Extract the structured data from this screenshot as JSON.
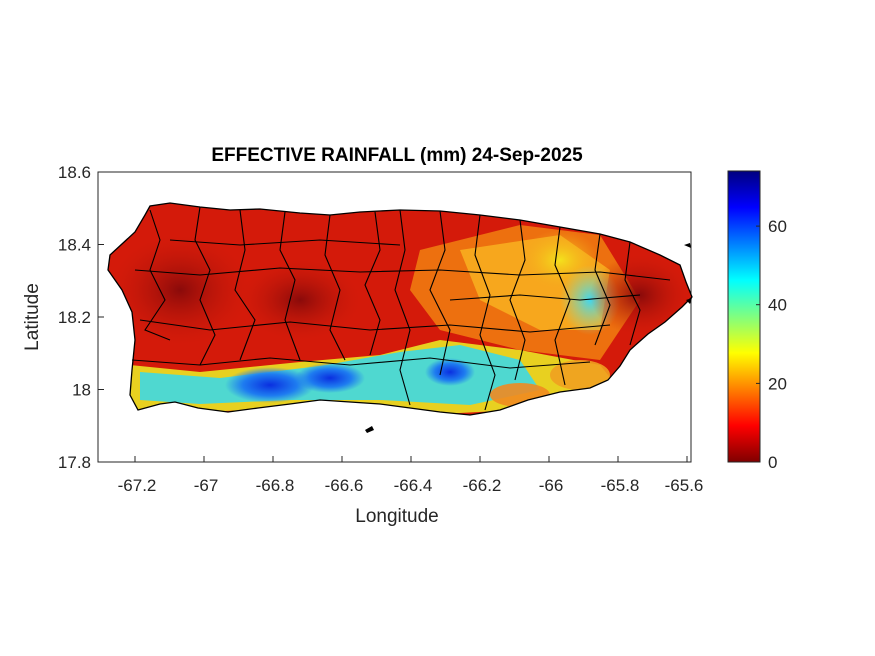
{
  "map": {
    "title": "EFFECTIVE RAINFALL (mm) 24-Sep-2025",
    "xlabel": "Longitude",
    "ylabel": "Latitude",
    "x_ticks": [
      "-67.2",
      "-67",
      "-66.8",
      "-66.6",
      "-66.4",
      "-66.2",
      "-66",
      "-65.8",
      "-65.6"
    ],
    "y_ticks": [
      "18.6",
      "18.4",
      "18.2",
      "18",
      "17.8"
    ],
    "xlim": [
      -67.3,
      -65.58
    ],
    "ylim": [
      17.8,
      18.6
    ],
    "colorbar": {
      "colormap": "jet",
      "range": [
        0,
        74
      ],
      "ticks": [
        "0",
        "20",
        "40",
        "60"
      ],
      "tick_values": [
        0,
        20,
        40,
        60
      ]
    },
    "colors": {
      "land_border": "#000000",
      "axes_box": "#262626"
    }
  }
}
